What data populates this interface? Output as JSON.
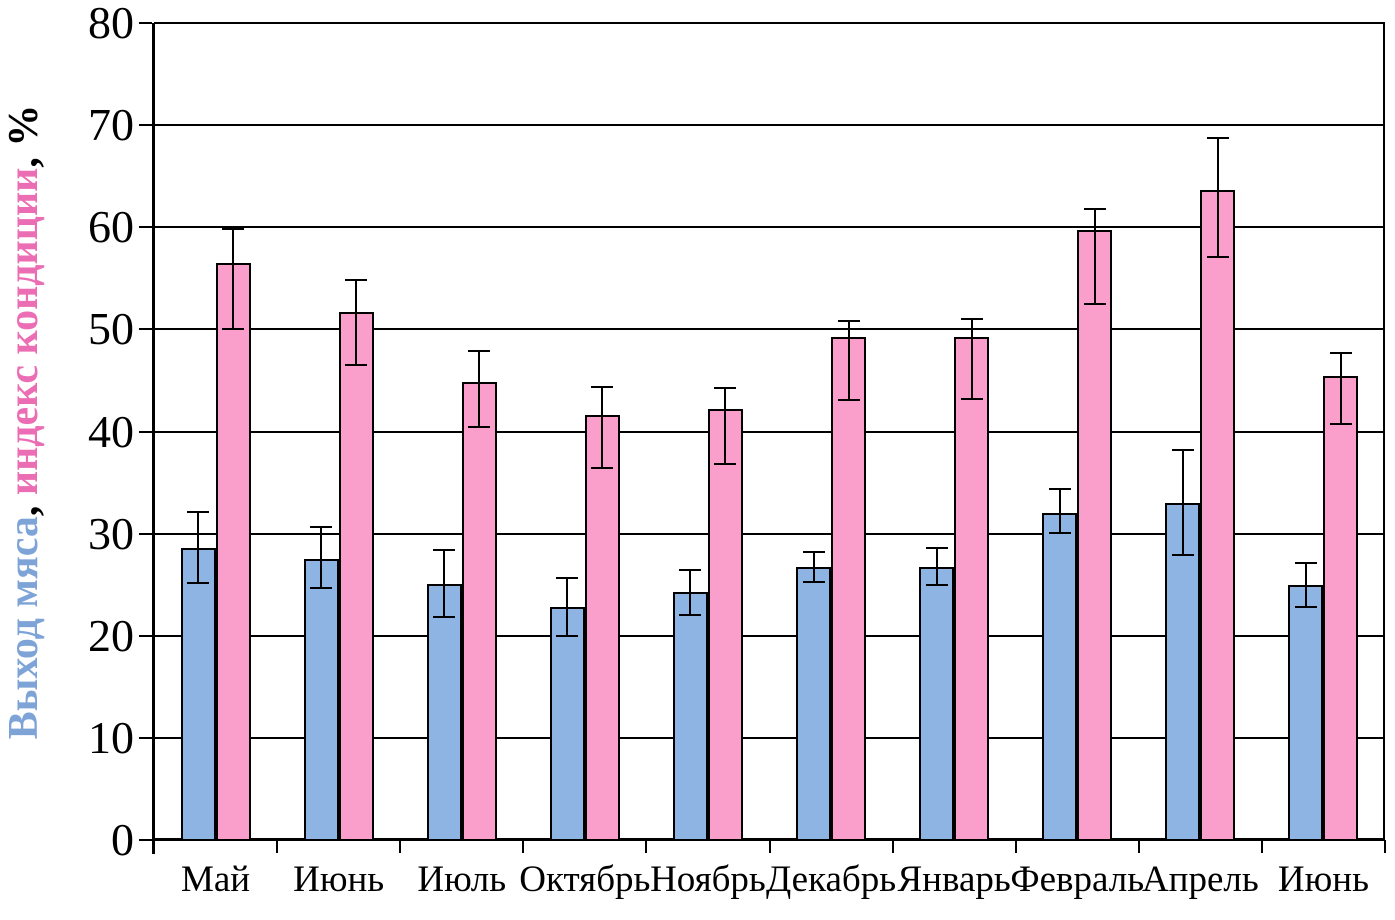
{
  "palette": {
    "bar_blue": "#8DB4E2",
    "bar_pink": "#FA9ECB",
    "label_blue": "#7DA3D7",
    "label_pink": "#EB6EB4",
    "label_black": "#000000",
    "axis_black": "#000000"
  },
  "chart_data": {
    "type": "bar",
    "title": "",
    "grid": true,
    "legend": false,
    "ylabel_parts": [
      {
        "text": "Выход мяса",
        "color_key": "label_blue"
      },
      {
        "text": ", ",
        "color_key": "label_black"
      },
      {
        "text": "индекс кондиции",
        "color_key": "label_pink"
      },
      {
        "text": ", %",
        "color_key": "label_black"
      }
    ],
    "y_axis": {
      "min": 0,
      "max": 80,
      "step": 10,
      "tick_labels": [
        "0",
        "10",
        "20",
        "30",
        "40",
        "50",
        "60",
        "70",
        "80"
      ]
    },
    "categories": [
      "Май",
      "Июнь",
      "Июль",
      "Октябрь",
      "Ноябрь",
      "Декабрь",
      "Январь",
      "Февраль",
      "Апрель",
      "Июнь"
    ],
    "series": [
      {
        "name": "Выход мяса",
        "color_key": "bar_blue",
        "values": [
          28.6,
          27.5,
          25.1,
          22.8,
          24.3,
          26.7,
          26.7,
          32.0,
          33.0,
          25.0
        ],
        "error_low": [
          25.2,
          24.7,
          21.8,
          20.0,
          22.0,
          25.3,
          25.0,
          30.1,
          27.9,
          22.8
        ],
        "error_high": [
          32.1,
          30.6,
          28.4,
          25.7,
          26.4,
          28.2,
          28.6,
          34.4,
          38.2,
          27.1
        ]
      },
      {
        "name": "индекс кондиции",
        "color_key": "bar_pink",
        "values": [
          56.5,
          51.7,
          44.8,
          41.6,
          42.2,
          49.3,
          49.3,
          59.7,
          63.6,
          45.4
        ],
        "error_low": [
          50.0,
          46.5,
          40.4,
          36.4,
          36.8,
          43.1,
          43.2,
          52.5,
          57.1,
          40.7
        ],
        "error_high": [
          59.8,
          54.8,
          47.9,
          44.4,
          44.3,
          50.8,
          51.0,
          61.8,
          68.7,
          47.7
        ]
      }
    ]
  }
}
